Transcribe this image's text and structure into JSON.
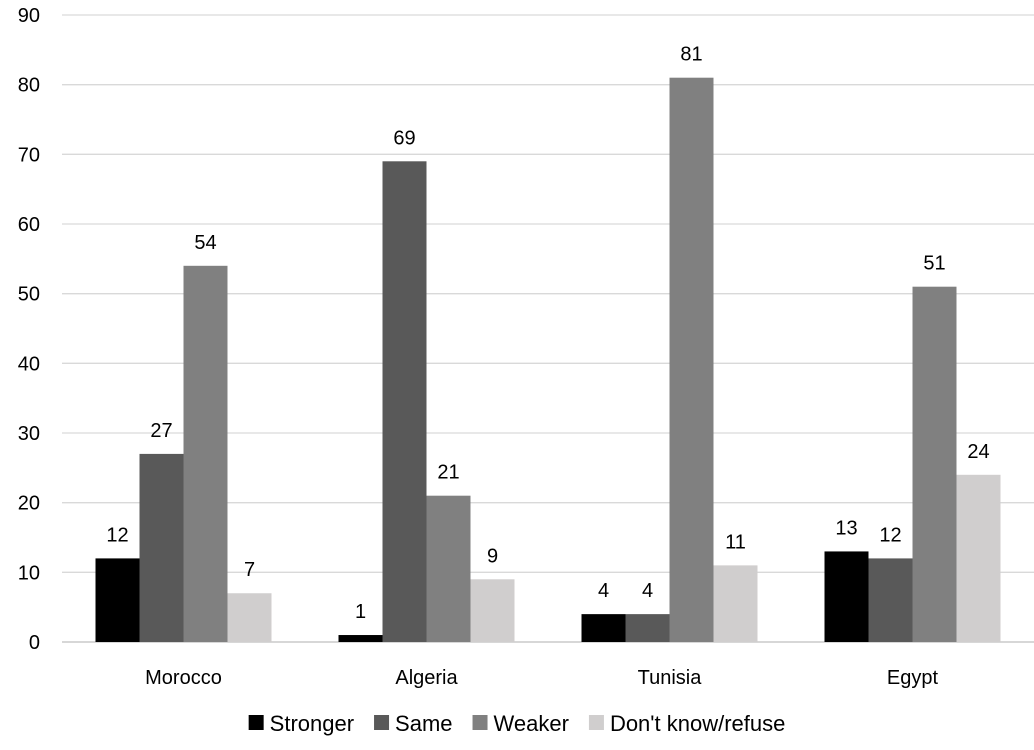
{
  "chart_data": {
    "type": "bar",
    "categories": [
      "Morocco",
      "Algeria",
      "Tunisia",
      "Egypt"
    ],
    "series": [
      {
        "name": "Stronger",
        "color": "#000000",
        "values": [
          12,
          1,
          4,
          13
        ]
      },
      {
        "name": "Same",
        "color": "#595959",
        "values": [
          27,
          69,
          4,
          12
        ]
      },
      {
        "name": "Weaker",
        "color": "#808080",
        "values": [
          54,
          21,
          81,
          51
        ]
      },
      {
        "name": "Don't know/refuse",
        "color": "#d0cece",
        "values": [
          7,
          9,
          11,
          24
        ]
      }
    ],
    "ylim": [
      0,
      90
    ],
    "yticks": [
      0,
      10,
      20,
      30,
      40,
      50,
      60,
      70,
      80,
      90
    ],
    "title": "",
    "xlabel": "",
    "ylabel": "",
    "grid": true,
    "legend_position": "bottom"
  }
}
